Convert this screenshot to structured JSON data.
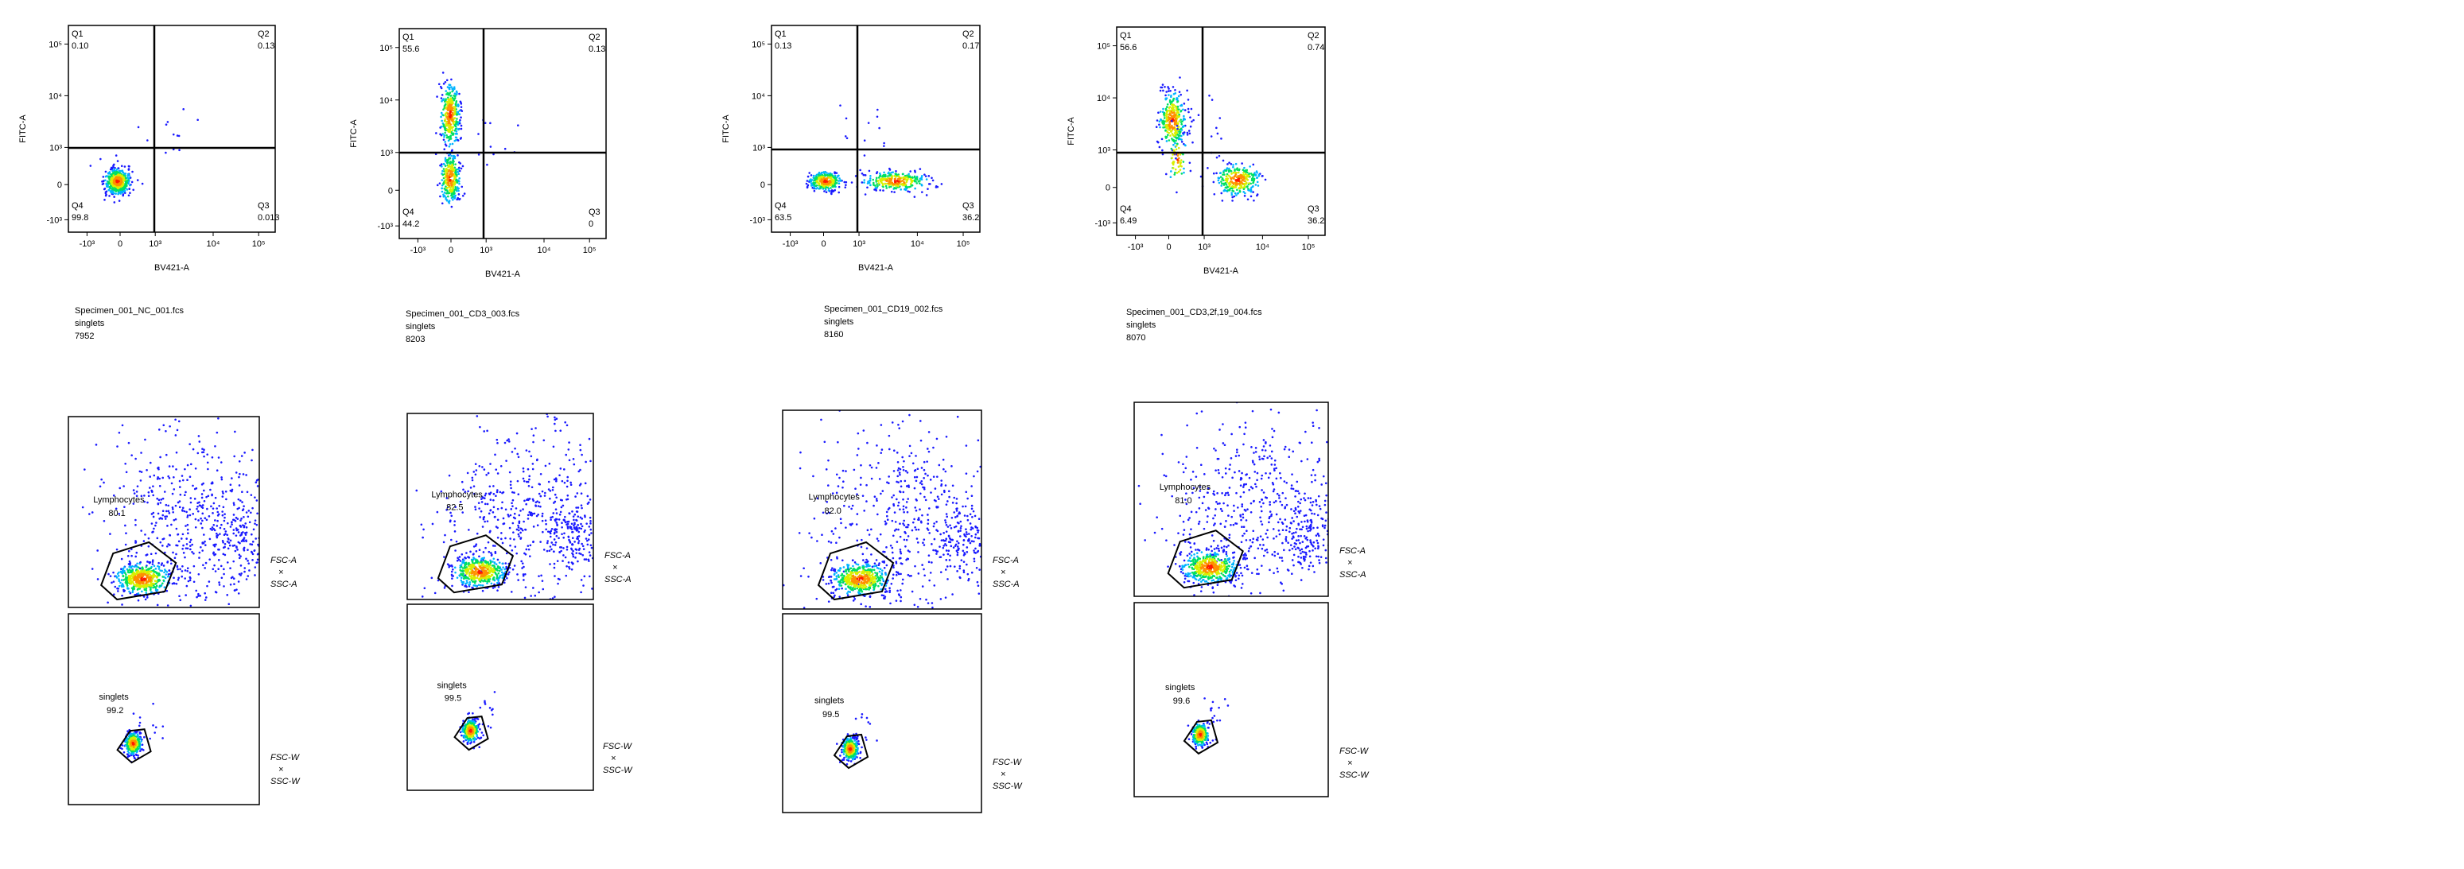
{
  "panels": [
    {
      "quadrants": [
        {
          "name": "Q1",
          "value": "0.10"
        },
        {
          "name": "Q2",
          "value": "0.13"
        },
        {
          "name": "Q3",
          "value": "0.013"
        },
        {
          "name": "Q4",
          "value": "99.8"
        }
      ],
      "x_label": "BV421-A",
      "y_label": "FITC-A",
      "file": "Specimen_001_NC_001.fcs",
      "population": "singlets",
      "count": "7952",
      "lymph_gate": {
        "label": "Lymphocytes",
        "value": "80.1"
      },
      "singlet_gate": {
        "label": "singlets",
        "value": "99.2"
      }
    },
    {
      "quadrants": [
        {
          "name": "Q1",
          "value": "55.6"
        },
        {
          "name": "Q2",
          "value": "0.13"
        },
        {
          "name": "Q3",
          "value": "0"
        },
        {
          "name": "Q4",
          "value": "44.2"
        }
      ],
      "x_label": "BV421-A",
      "y_label": "FITC-A",
      "file": "Specimen_001_CD3_003.fcs",
      "population": "singlets",
      "count": "8203",
      "lymph_gate": {
        "label": "Lymphocytes",
        "value": "82.5"
      },
      "singlet_gate": {
        "label": "singlets",
        "value": "99.5"
      }
    },
    {
      "quadrants": [
        {
          "name": "Q1",
          "value": "0.13"
        },
        {
          "name": "Q2",
          "value": "0.17"
        },
        {
          "name": "Q3",
          "value": "36.2"
        },
        {
          "name": "Q4",
          "value": "63.5"
        }
      ],
      "x_label": "BV421-A",
      "y_label": "FITC-A",
      "file": "Specimen_001_CD19_002.fcs",
      "population": "singlets",
      "count": "8160",
      "lymph_gate": {
        "label": "Lymphocytes",
        "value": "82.0"
      },
      "singlet_gate": {
        "label": "singlets",
        "value": "99.5"
      }
    },
    {
      "quadrants": [
        {
          "name": "Q1",
          "value": "56.6"
        },
        {
          "name": "Q2",
          "value": "0.74"
        },
        {
          "name": "Q3",
          "value": "36.2"
        },
        {
          "name": "Q4",
          "value": "6.49"
        }
      ],
      "x_label": "BV421-A",
      "y_label": "FITC-A",
      "file": "Specimen_001_CD3,2f,19_004.fcs",
      "population": "singlets",
      "count": "8070",
      "lymph_gate": {
        "label": "Lymphocytes",
        "value": "81.0"
      },
      "singlet_gate": {
        "label": "singlets",
        "value": "99.6"
      }
    }
  ],
  "x_ticks": [
    "-10³",
    "0",
    "10³",
    "10⁴",
    "10⁵"
  ],
  "y_ticks": [
    "10⁵",
    "10⁴",
    "10³",
    "0",
    "-10³"
  ],
  "lymph_axes": [
    "FSC-A",
    "×",
    "SSC-A"
  ],
  "singlet_axes": [
    "FSC-W",
    "×",
    "SSC-W"
  ]
}
